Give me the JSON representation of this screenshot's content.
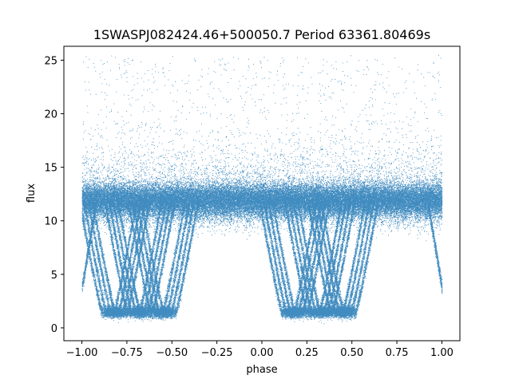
{
  "chart_data": {
    "type": "scatter",
    "title": "1SWASPJ082424.46+500050.7 Period 63361.80469s",
    "xlabel": "phase",
    "ylabel": "flux",
    "xlim": [
      -1.1,
      1.1
    ],
    "ylim": [
      -1.2,
      26.3
    ],
    "xticks": [
      -1.0,
      -0.75,
      -0.5,
      -0.25,
      0.0,
      0.25,
      0.5,
      0.75,
      1.0
    ],
    "xtick_labels": [
      "−1.00",
      "−0.75",
      "−0.50",
      "−0.25",
      "0.00",
      "0.25",
      "0.50",
      "0.75",
      "1.00"
    ],
    "yticks": [
      0,
      5,
      10,
      15,
      20,
      25
    ],
    "ytick_labels": [
      "0",
      "5",
      "10",
      "15",
      "20",
      "25"
    ],
    "grid": false,
    "marker_color": "#1f77b4",
    "series": [
      {
        "description_of_distribution": "dense band of flux values around 12 (roughly 10-14) across all phases, with sparse outliers up to ~25",
        "band_center": 12.0,
        "band_halfwidth": 1.5
      },
      {
        "minima_phases": [
          -0.82,
          -0.68,
          -0.55,
          0.18,
          0.32,
          0.45
        ],
        "minimum_flux": 1.5,
        "edge_values": [
          {
            "x": -1.0,
            "y": 3.8
          },
          {
            "x": 1.0,
            "y": 3.8
          }
        ]
      }
    ]
  }
}
